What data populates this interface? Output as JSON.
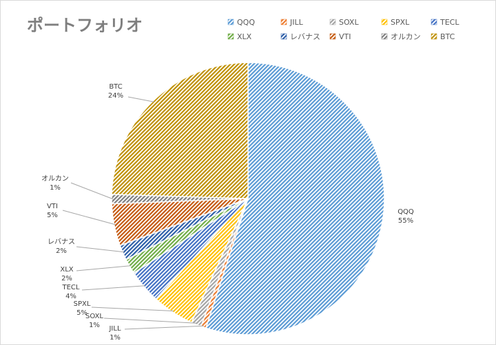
{
  "chart_data": {
    "type": "pie",
    "title": "ポートフォリオ",
    "legend_position": "top-right",
    "slices": [
      {
        "name": "QQQ",
        "value": 55,
        "percent_label": "55%",
        "color": "#9dc3e6",
        "hatch": "#5b9bd5"
      },
      {
        "name": "JILL",
        "value": 0.6,
        "percent_label": "1%",
        "color": "#f4b183",
        "hatch": "#ed7d31"
      },
      {
        "name": "SOXL",
        "value": 1.2,
        "percent_label": "1%",
        "color": "#c9c9c9",
        "hatch": "#a5a5a5"
      },
      {
        "name": "SPXL",
        "value": 5,
        "percent_label": "5%",
        "color": "#ffd966",
        "hatch": "#ffc000"
      },
      {
        "name": "TECL",
        "value": 4,
        "percent_label": "4%",
        "color": "#8faadc",
        "hatch": "#4472c4"
      },
      {
        "name": "XLX",
        "value": 1.8,
        "percent_label": "2%",
        "color": "#a9d18e",
        "hatch": "#70ad47"
      },
      {
        "name": "レバナス",
        "value": 1.8,
        "percent_label": "2%",
        "color": "#7fa6d9",
        "hatch": "#2e5fa8"
      },
      {
        "name": "VTI",
        "value": 5,
        "percent_label": "5%",
        "color": "#f19c70",
        "hatch": "#c55a11"
      },
      {
        "name": "オルカン",
        "value": 1.1,
        "percent_label": "1%",
        "color": "#a6a6a6",
        "hatch": "#7f7f7f"
      },
      {
        "name": "BTC",
        "value": 24.5,
        "percent_label": "24%",
        "color": "#e6c15c",
        "hatch": "#bf9000"
      }
    ]
  }
}
